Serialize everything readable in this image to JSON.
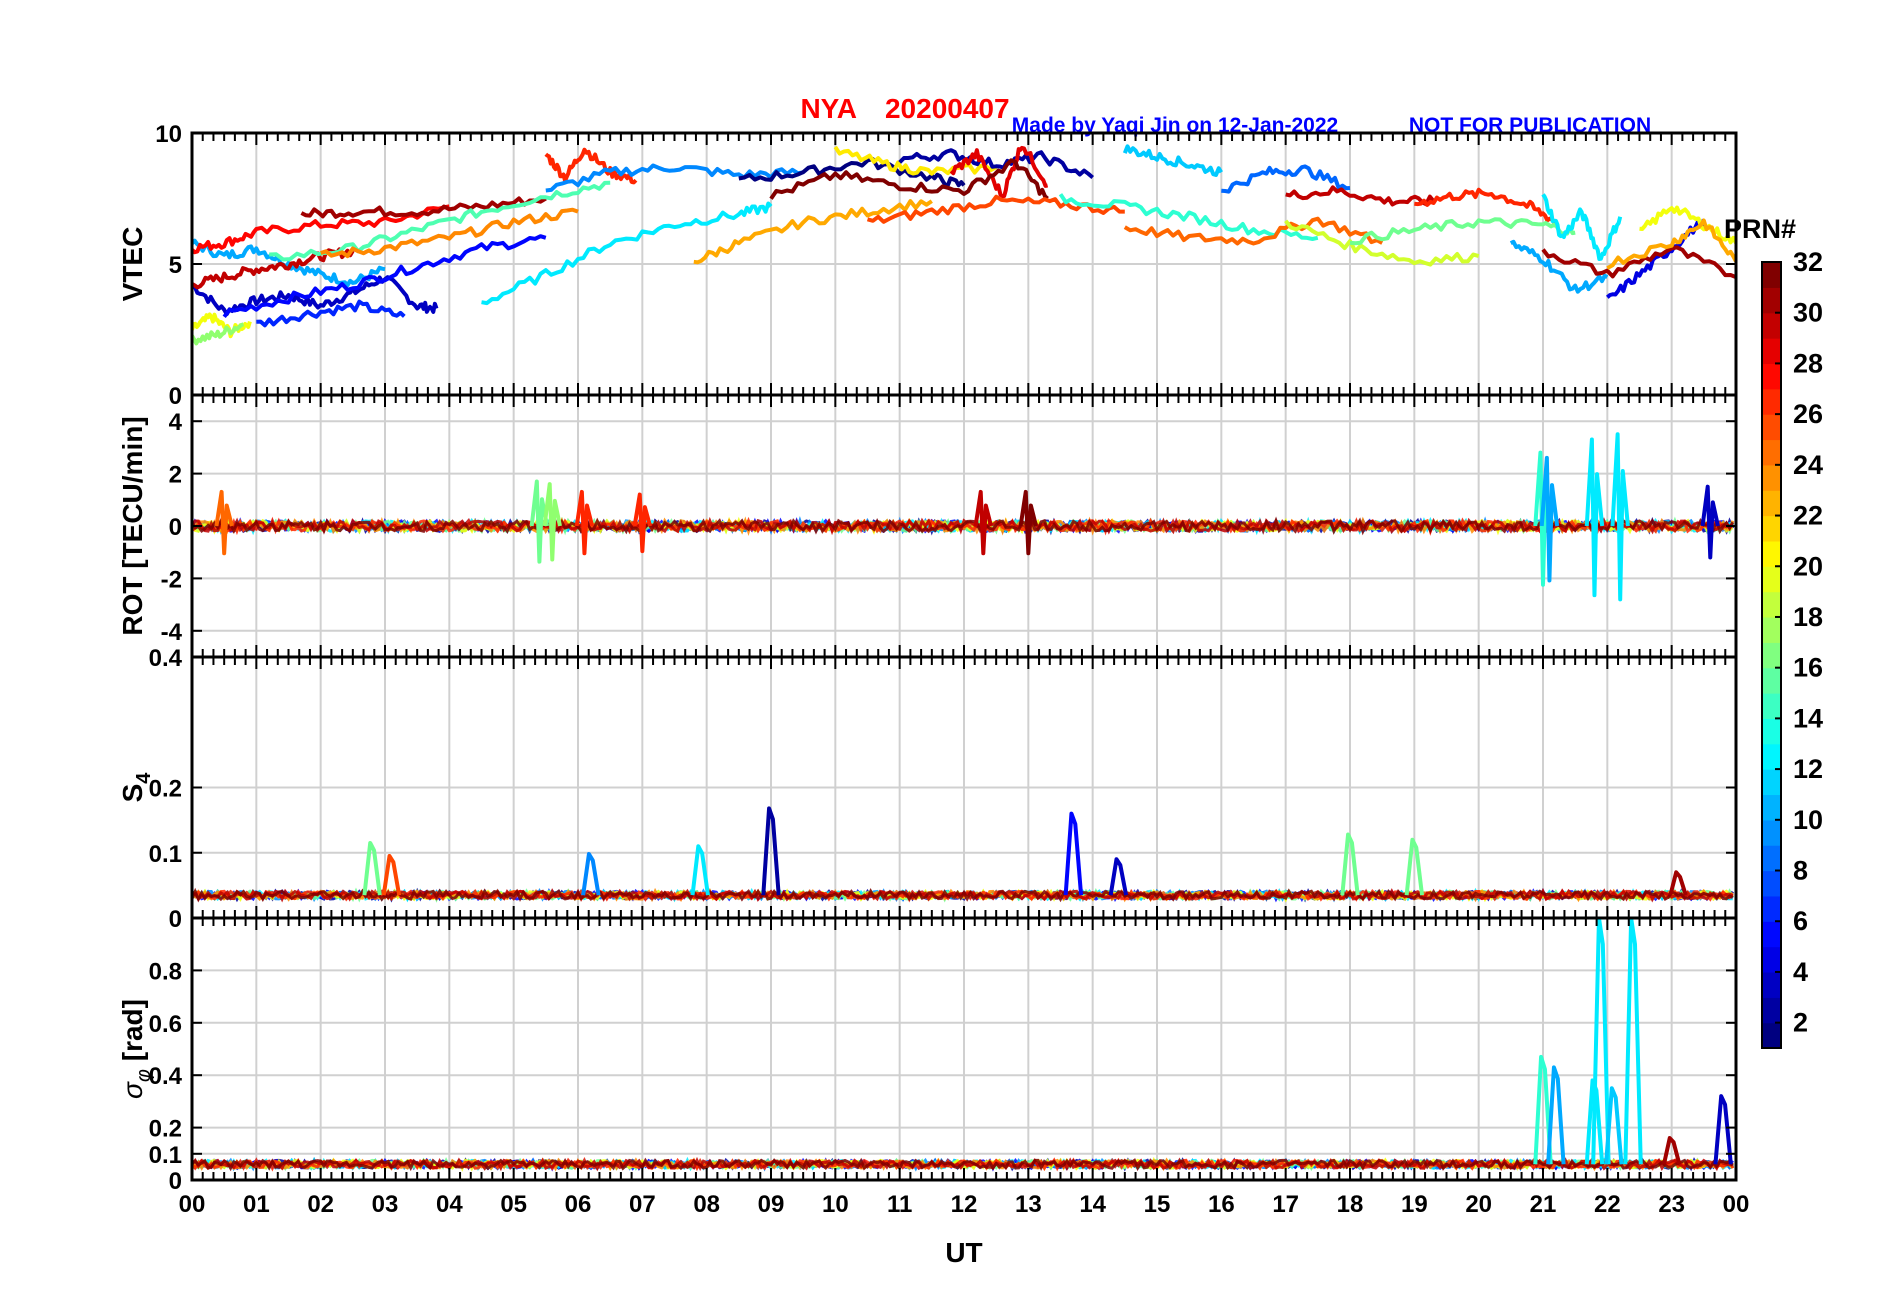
{
  "header": {
    "station": "NYA",
    "date": "20200407",
    "credit": "Made by Yaqi Jin on 12-Jan-2022",
    "notice": "NOT FOR PUBLICATION"
  },
  "colors": {
    "title": "#ff0000",
    "credit": "#0000ff",
    "grid": "#d0d0d0",
    "axis": "#000000"
  },
  "chart_data": [
    {
      "type": "line",
      "id": "vtec",
      "ylabel": "VTEC",
      "ylim": [
        0,
        10
      ],
      "yticks": [
        0,
        5,
        10
      ],
      "xlim": [
        0,
        24
      ],
      "grid": true,
      "series_note": "multiple PRN traces colored by PRN number (jet colormap 1-32)",
      "series": [
        {
          "prn": 3,
          "x": [
            0.0,
            0.5,
            1.0,
            1.5,
            2.0,
            2.5,
            3.0,
            3.5,
            3.8
          ],
          "y": [
            4.2,
            3.2,
            3.6,
            3.8,
            3.4,
            3.9,
            4.5,
            3.4,
            3.3
          ]
        },
        {
          "prn": 10,
          "x": [
            0.0,
            0.5,
            1.0,
            1.5,
            2.0,
            2.5,
            3.0
          ],
          "y": [
            5.8,
            5.3,
            5.6,
            5.0,
            4.6,
            4.3,
            4.8
          ]
        },
        {
          "prn": 20,
          "x": [
            0.0,
            0.3,
            0.6,
            0.9
          ],
          "y": [
            2.5,
            3.0,
            2.4,
            2.8
          ]
        },
        {
          "prn": 17,
          "x": [
            0.0,
            0.4,
            0.8
          ],
          "y": [
            2.1,
            2.3,
            2.7
          ]
        },
        {
          "prn": 28,
          "x": [
            0.0,
            0.5,
            1.0,
            2.0,
            3.0,
            4.0
          ],
          "y": [
            5.6,
            5.8,
            6.2,
            6.5,
            6.6,
            7.2
          ]
        },
        {
          "prn": 30,
          "x": [
            0.0,
            0.5,
            1.0,
            1.5,
            2.0,
            2.5
          ],
          "y": [
            4.2,
            4.5,
            4.8,
            5.0,
            5.3,
            5.5
          ]
        },
        {
          "prn": 31,
          "x": [
            1.7,
            2.5,
            3.5,
            4.5,
            5.5
          ],
          "y": [
            6.9,
            7.0,
            7.0,
            7.2,
            7.5
          ]
        },
        {
          "prn": 6,
          "x": [
            1.0,
            1.8,
            2.6,
            3.3
          ],
          "y": [
            2.7,
            3.1,
            3.4,
            3.0
          ]
        },
        {
          "prn": 5,
          "x": [
            0.5,
            1.5,
            2.5,
            3.5,
            4.5,
            5.5
          ],
          "y": [
            3.1,
            3.7,
            4.2,
            4.9,
            5.6,
            6.0
          ]
        },
        {
          "prn": 15,
          "x": [
            1.2,
            2.5,
            3.5,
            4.5,
            5.5,
            6.5
          ],
          "y": [
            5.2,
            5.6,
            6.3,
            7.0,
            7.6,
            8.1
          ]
        },
        {
          "prn": 24,
          "x": [
            2.0,
            3.0,
            4.0,
            5.0,
            6.0
          ],
          "y": [
            5.3,
            5.6,
            6.0,
            6.6,
            7.0
          ]
        },
        {
          "prn": 27,
          "x": [
            5.5,
            5.8,
            6.1,
            6.5,
            6.9
          ],
          "y": [
            9.2,
            8.3,
            9.4,
            8.5,
            8.2
          ]
        },
        {
          "prn": 9,
          "x": [
            5.5,
            6.5,
            7.5,
            8.5,
            9.5
          ],
          "y": [
            7.8,
            8.5,
            8.7,
            8.4,
            8.5
          ]
        },
        {
          "prn": 12,
          "x": [
            4.5,
            5.5,
            6.5,
            7.5,
            8.5,
            9.0
          ],
          "y": [
            3.5,
            4.6,
            5.8,
            6.5,
            6.9,
            7.2
          ]
        },
        {
          "prn": 1,
          "x": [
            8.5,
            9.5,
            10.5,
            11.5,
            12.0
          ],
          "y": [
            8.2,
            8.5,
            8.9,
            8.3,
            8.0
          ]
        },
        {
          "prn": 23,
          "x": [
            7.8,
            8.5,
            9.5,
            10.5,
            11.5
          ],
          "y": [
            5.1,
            5.8,
            6.6,
            7.0,
            7.4
          ]
        },
        {
          "prn": 21,
          "x": [
            10.0,
            10.8,
            11.5,
            12.5
          ],
          "y": [
            9.3,
            8.8,
            8.5,
            8.7
          ]
        },
        {
          "prn": 2,
          "x": [
            11.0,
            11.8,
            12.5,
            13.2,
            14.0
          ],
          "y": [
            9.0,
            9.2,
            8.8,
            9.1,
            8.3
          ]
        },
        {
          "prn": 29,
          "x": [
            11.8,
            12.2,
            12.6,
            12.9,
            13.3
          ],
          "y": [
            8.5,
            9.2,
            7.6,
            9.6,
            8.0
          ]
        },
        {
          "prn": 32,
          "x": [
            9.0,
            10.0,
            11.0,
            12.0,
            12.8,
            13.3
          ],
          "y": [
            7.6,
            8.4,
            8.0,
            7.8,
            8.9,
            7.5
          ]
        },
        {
          "prn": 26,
          "x": [
            10.5,
            11.5,
            12.5,
            13.5,
            14.5
          ],
          "y": [
            6.6,
            7.0,
            7.4,
            7.3,
            7.0
          ]
        },
        {
          "prn": 11,
          "x": [
            14.5,
            15.0,
            15.5,
            16.0
          ],
          "y": [
            9.4,
            9.1,
            8.8,
            8.5
          ]
        },
        {
          "prn": 14,
          "x": [
            13.5,
            14.5,
            15.5,
            16.5,
            17.5
          ],
          "y": [
            7.5,
            7.2,
            6.8,
            6.3,
            6.0
          ]
        },
        {
          "prn": 8,
          "x": [
            16.0,
            16.7,
            17.3,
            18.0
          ],
          "y": [
            7.8,
            8.5,
            8.6,
            7.9
          ]
        },
        {
          "prn": 30,
          "x": [
            17.0,
            17.8,
            18.6,
            19.3
          ],
          "y": [
            7.6,
            7.8,
            7.4,
            7.4
          ]
        },
        {
          "prn": 27,
          "x": [
            19.0,
            19.6,
            20.2,
            20.8,
            21.2
          ],
          "y": [
            7.3,
            7.6,
            7.7,
            7.2,
            6.6
          ]
        },
        {
          "prn": 25,
          "x": [
            14.5,
            15.5,
            16.5,
            17.5,
            18.5
          ],
          "y": [
            6.4,
            6.0,
            5.9,
            6.7,
            5.8
          ]
        },
        {
          "prn": 19,
          "x": [
            17.0,
            18.0,
            19.0,
            20.0
          ],
          "y": [
            6.6,
            5.7,
            5.1,
            5.3
          ]
        },
        {
          "prn": 16,
          "x": [
            18.0,
            19.0,
            20.0,
            21.0,
            21.5
          ],
          "y": [
            5.9,
            6.3,
            6.6,
            6.5,
            6.2
          ]
        },
        {
          "prn": 12,
          "x": [
            21.0,
            21.3,
            21.6,
            21.9,
            22.2
          ],
          "y": [
            7.6,
            6.0,
            7.0,
            5.2,
            6.8
          ]
        },
        {
          "prn": 10,
          "x": [
            20.5,
            21.0,
            21.5,
            22.0
          ],
          "y": [
            5.8,
            5.2,
            4.0,
            4.5
          ]
        },
        {
          "prn": 4,
          "x": [
            22.0,
            22.5,
            23.0,
            23.5
          ],
          "y": [
            3.6,
            4.6,
            5.6,
            6.7
          ]
        },
        {
          "prn": 20,
          "x": [
            22.5,
            23.0,
            23.5,
            24.0
          ],
          "y": [
            6.2,
            7.2,
            6.5,
            5.8
          ]
        },
        {
          "prn": 31,
          "x": [
            21.0,
            22.0,
            23.0,
            24.0
          ],
          "y": [
            5.5,
            4.6,
            5.6,
            4.5
          ]
        },
        {
          "prn": 23,
          "x": [
            22.0,
            23.0,
            23.5,
            24.0
          ],
          "y": [
            5.0,
            5.8,
            6.6,
            5.1
          ]
        }
      ]
    },
    {
      "type": "line",
      "id": "rot",
      "ylabel": "ROT [TECU/min]",
      "ylim": [
        -5,
        5
      ],
      "yticks": [
        -4,
        -2,
        0,
        2,
        4
      ],
      "xlim": [
        0,
        24
      ],
      "grid": true,
      "series_note": "rate of TEC per PRN; baseline near 0 with spikes",
      "bursts": [
        {
          "x": 0.5,
          "amp": 1.3,
          "prn": 25
        },
        {
          "x": 5.4,
          "amp": 1.7,
          "prn": 16
        },
        {
          "x": 5.6,
          "amp": 1.6,
          "prn": 17
        },
        {
          "x": 6.1,
          "amp": 1.3,
          "prn": 27
        },
        {
          "x": 7.0,
          "amp": 1.2,
          "prn": 27
        },
        {
          "x": 12.3,
          "amp": 1.3,
          "prn": 30
        },
        {
          "x": 13.0,
          "amp": 1.3,
          "prn": 32
        },
        {
          "x": 21.0,
          "amp": 2.8,
          "prn": 14
        },
        {
          "x": 21.1,
          "amp": 2.6,
          "prn": 10
        },
        {
          "x": 21.8,
          "amp": 3.3,
          "prn": 12
        },
        {
          "x": 22.2,
          "amp": 3.5,
          "prn": 12
        },
        {
          "x": 23.6,
          "amp": 1.5,
          "prn": 3
        }
      ]
    },
    {
      "type": "line",
      "id": "s4",
      "ylabel": "S4",
      "ylim": [
        0,
        0.4
      ],
      "yticks": [
        0,
        0.1,
        0.2,
        0.4
      ],
      "ytick_labels": [
        "0",
        "0.1",
        "0.2",
        "0.4"
      ],
      "xlim": [
        0,
        24
      ],
      "grid": true,
      "baseline": 0.035,
      "peaks": [
        {
          "x": 2.8,
          "y": 0.115,
          "prn": 16
        },
        {
          "x": 3.1,
          "y": 0.095,
          "prn": 26
        },
        {
          "x": 6.2,
          "y": 0.098,
          "prn": 9
        },
        {
          "x": 7.9,
          "y": 0.11,
          "prn": 12
        },
        {
          "x": 9.0,
          "y": 0.168,
          "prn": 2
        },
        {
          "x": 13.7,
          "y": 0.16,
          "prn": 5
        },
        {
          "x": 14.4,
          "y": 0.09,
          "prn": 3
        },
        {
          "x": 18.0,
          "y": 0.128,
          "prn": 16
        },
        {
          "x": 19.0,
          "y": 0.12,
          "prn": 16
        },
        {
          "x": 23.1,
          "y": 0.07,
          "prn": 31
        }
      ]
    },
    {
      "type": "line",
      "id": "sigma_phi",
      "ylabel": "σφ [rad]",
      "ylim": [
        0,
        1
      ],
      "yticks": [
        0,
        0.1,
        0.2,
        0.4,
        0.6,
        0.8
      ],
      "xlim": [
        0,
        24
      ],
      "grid": true,
      "baseline": 0.06,
      "peaks": [
        {
          "x": 21.0,
          "y": 0.47,
          "prn": 14
        },
        {
          "x": 21.2,
          "y": 0.43,
          "prn": 10
        },
        {
          "x": 21.8,
          "y": 0.38,
          "prn": 12
        },
        {
          "x": 21.9,
          "y": 1.0,
          "prn": 12
        },
        {
          "x": 22.1,
          "y": 0.35,
          "prn": 11
        },
        {
          "x": 22.4,
          "y": 1.0,
          "prn": 12
        },
        {
          "x": 23.0,
          "y": 0.16,
          "prn": 31
        },
        {
          "x": 23.8,
          "y": 0.32,
          "prn": 3
        }
      ]
    }
  ],
  "xaxis": {
    "label": "UT",
    "ticks": [
      "00",
      "01",
      "02",
      "03",
      "04",
      "05",
      "06",
      "07",
      "08",
      "09",
      "10",
      "11",
      "12",
      "13",
      "14",
      "15",
      "16",
      "17",
      "18",
      "19",
      "20",
      "21",
      "22",
      "23",
      "00"
    ]
  },
  "colorbar": {
    "label": "PRN#",
    "range": [
      1,
      32
    ],
    "ticks": [
      2,
      4,
      6,
      8,
      10,
      12,
      14,
      16,
      18,
      20,
      22,
      24,
      26,
      28,
      30,
      32
    ],
    "colormap": "jet"
  }
}
